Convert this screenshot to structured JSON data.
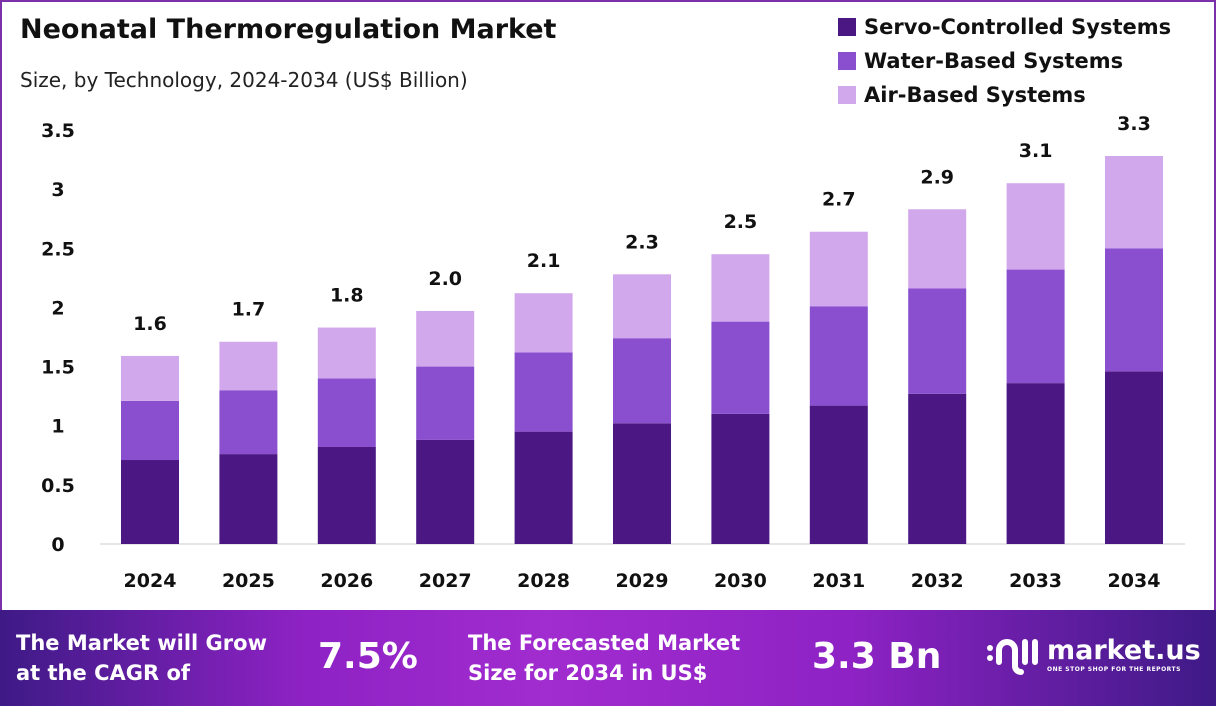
{
  "chart_data": {
    "type": "bar",
    "stacked": true,
    "title": "Neonatal Thermoregulation Market",
    "subtitle": "Size, by Technology, 2024-2034 (US$ Billion)",
    "categories": [
      "2024",
      "2025",
      "2026",
      "2027",
      "2028",
      "2029",
      "2030",
      "2031",
      "2032",
      "2033",
      "2034"
    ],
    "series": [
      {
        "name": "Servo-Controlled Systems",
        "color": "#4b1782",
        "values": [
          0.71,
          0.76,
          0.82,
          0.88,
          0.95,
          1.02,
          1.1,
          1.17,
          1.27,
          1.36,
          1.46
        ]
      },
      {
        "name": "Water-Based Systems",
        "color": "#8a4fcf",
        "values": [
          0.5,
          0.54,
          0.58,
          0.62,
          0.67,
          0.72,
          0.78,
          0.84,
          0.89,
          0.96,
          1.04
        ]
      },
      {
        "name": "Air-Based Systems",
        "color": "#d2a8ec",
        "values": [
          0.38,
          0.41,
          0.43,
          0.47,
          0.5,
          0.54,
          0.57,
          0.63,
          0.67,
          0.73,
          0.78
        ]
      }
    ],
    "totals": [
      "1.6",
      "1.7",
      "1.8",
      "2.0",
      "2.1",
      "2.3",
      "2.5",
      "2.7",
      "2.9",
      "3.1",
      "3.3"
    ],
    "yticks": [
      "0",
      "0.5",
      "1",
      "1.5",
      "2",
      "2.5",
      "3",
      "3.5"
    ],
    "ylim": [
      0,
      3.5
    ],
    "grid": false,
    "legend_position": "top-right"
  },
  "footer": {
    "cagr_label_1": "The Market will Grow",
    "cagr_label_2": "at the CAGR of",
    "cagr_value": "7.5%",
    "forecast_label_1": "The Forecasted Market",
    "forecast_label_2": "Size for 2034 in US$",
    "forecast_value": "3.3 Bn",
    "logo_name": "market.us",
    "logo_tagline": "ONE STOP SHOP FOR THE REPORTS"
  }
}
